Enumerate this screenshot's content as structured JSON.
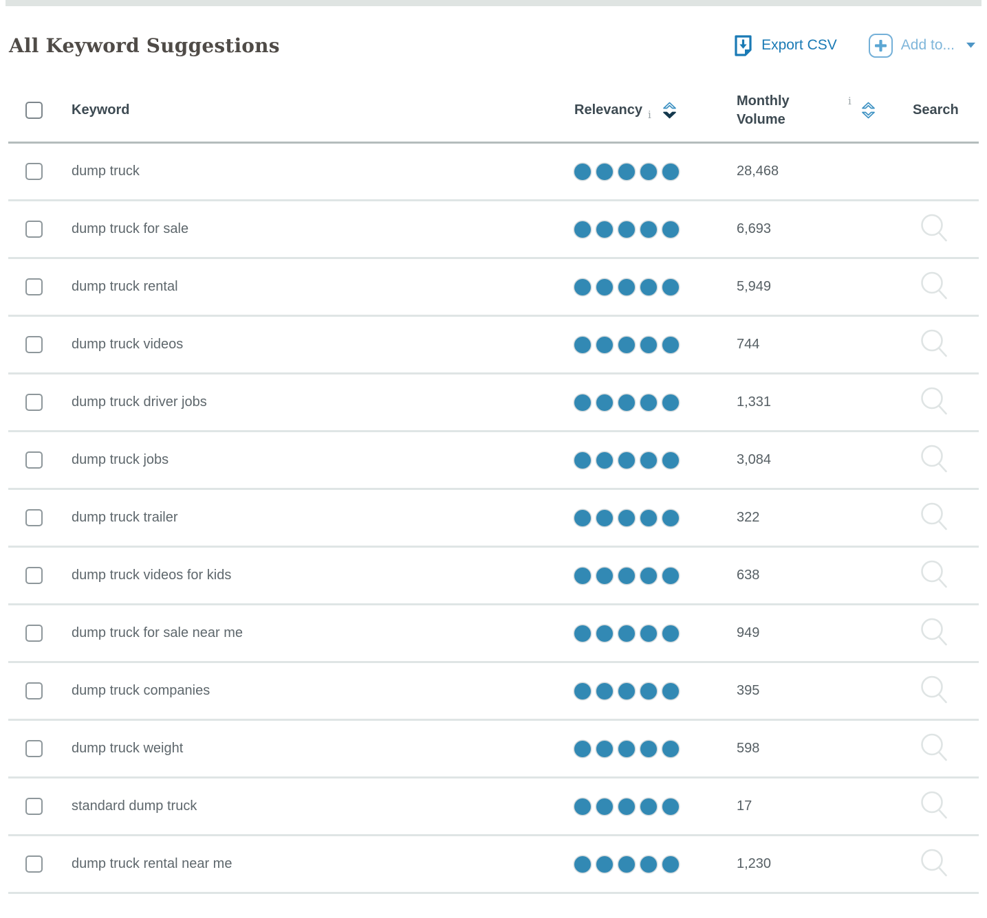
{
  "page": {
    "title": "All Keyword Suggestions"
  },
  "actions": {
    "export_label": "Export CSV",
    "add_to_label": "Add to..."
  },
  "table": {
    "headers": {
      "keyword": "Keyword",
      "relevancy": "Relevancy",
      "monthly_volume": "Monthly Volume",
      "search": "Search",
      "info_glyph": "i"
    },
    "sort_state": {
      "relevancy": "descending",
      "monthly_volume": "none"
    },
    "rows": [
      {
        "keyword": "dump truck",
        "relevancy_dots": 5,
        "relevancy_max": 5,
        "monthly_volume": "28,468",
        "has_search": false
      },
      {
        "keyword": "dump truck for sale",
        "relevancy_dots": 5,
        "relevancy_max": 5,
        "monthly_volume": "6,693",
        "has_search": true
      },
      {
        "keyword": "dump truck rental",
        "relevancy_dots": 5,
        "relevancy_max": 5,
        "monthly_volume": "5,949",
        "has_search": true
      },
      {
        "keyword": "dump truck videos",
        "relevancy_dots": 5,
        "relevancy_max": 5,
        "monthly_volume": "744",
        "has_search": true
      },
      {
        "keyword": "dump truck driver jobs",
        "relevancy_dots": 5,
        "relevancy_max": 5,
        "monthly_volume": "1,331",
        "has_search": true
      },
      {
        "keyword": "dump truck jobs",
        "relevancy_dots": 5,
        "relevancy_max": 5,
        "monthly_volume": "3,084",
        "has_search": true
      },
      {
        "keyword": "dump truck trailer",
        "relevancy_dots": 5,
        "relevancy_max": 5,
        "monthly_volume": "322",
        "has_search": true
      },
      {
        "keyword": "dump truck videos for kids",
        "relevancy_dots": 5,
        "relevancy_max": 5,
        "monthly_volume": "638",
        "has_search": true
      },
      {
        "keyword": "dump truck for sale near me",
        "relevancy_dots": 5,
        "relevancy_max": 5,
        "monthly_volume": "949",
        "has_search": true
      },
      {
        "keyword": "dump truck companies",
        "relevancy_dots": 5,
        "relevancy_max": 5,
        "monthly_volume": "395",
        "has_search": true
      },
      {
        "keyword": "dump truck weight",
        "relevancy_dots": 5,
        "relevancy_max": 5,
        "monthly_volume": "598",
        "has_search": true
      },
      {
        "keyword": "standard dump truck",
        "relevancy_dots": 5,
        "relevancy_max": 5,
        "monthly_volume": "17",
        "has_search": true
      },
      {
        "keyword": "dump truck rental near me",
        "relevancy_dots": 5,
        "relevancy_max": 5,
        "monthly_volume": "1,230",
        "has_search": true
      }
    ]
  },
  "colors": {
    "accent_blue": "#1a7ab5",
    "light_blue": "#7fb6da",
    "dot_blue": "#3289b4",
    "chevron_outline_blue": "#3e92c3",
    "chevron_active_navy": "#14384d",
    "row_border_gray": "#dfe5e5",
    "header_border_gray": "#b4bcbc"
  }
}
